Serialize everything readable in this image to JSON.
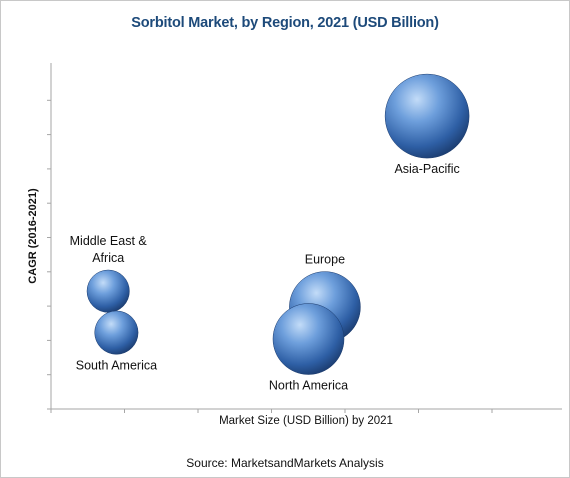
{
  "chart_data": {
    "type": "bubble",
    "title": "Sorbitol Market, by Region, 2021 (USD Billion)",
    "xlabel": "Market Size (USD Billion) by 2021",
    "ylabel": "CAGR (2016-2021)",
    "axis_ticks_labeled": false,
    "grid": false,
    "legend": "none",
    "series": [
      {
        "label": "Asia-Pacific",
        "label_lines": [
          "Asia-Pacific"
        ],
        "label_position": "below",
        "x": 0.92,
        "y": 0.92,
        "size": 1.0
      },
      {
        "label": "Europe",
        "label_lines": [
          "Europe"
        ],
        "label_position": "above",
        "x": 0.67,
        "y": 0.32,
        "size": 0.75
      },
      {
        "label": "North America",
        "label_lines": [
          "North America"
        ],
        "label_position": "below",
        "x": 0.63,
        "y": 0.22,
        "size": 0.75
      },
      {
        "label": "Middle East & Africa",
        "label_lines": [
          "Middle East &",
          "Africa"
        ],
        "label_position": "above",
        "x": 0.14,
        "y": 0.37,
        "size": 0.2
      },
      {
        "label": "South America",
        "label_lines": [
          "South America"
        ],
        "label_position": "below",
        "x": 0.16,
        "y": 0.24,
        "size": 0.22
      }
    ],
    "bubble_color": "#3a6eb5"
  },
  "source_text": "Source: MarketsandMarkets Analysis"
}
